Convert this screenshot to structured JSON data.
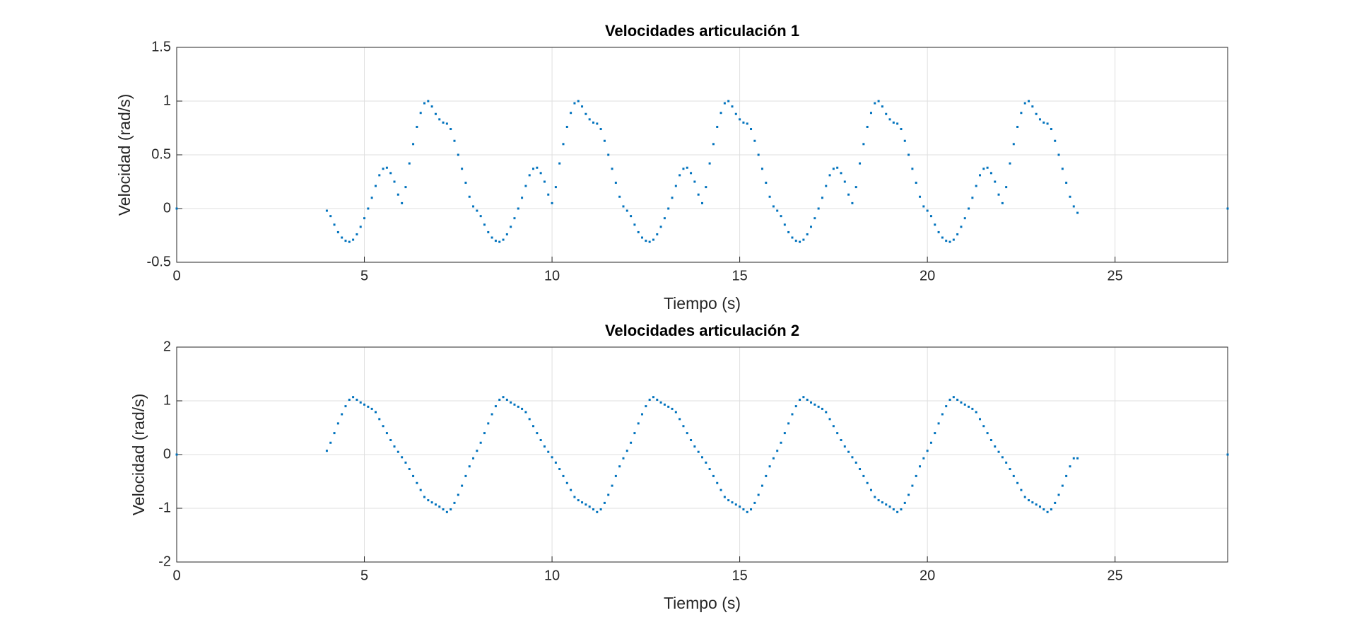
{
  "chart_data": [
    {
      "type": "scatter",
      "title": "Velocidades articulación 1",
      "xlabel": "Tiempo (s)",
      "ylabel": "Velocidad (rad/s)",
      "color": "#0072bd",
      "grid": true,
      "xlim": [
        0,
        28
      ],
      "ylim": [
        -0.5,
        1.5
      ],
      "xticks": [
        0,
        5,
        10,
        15,
        20,
        25
      ],
      "yticks": [
        -0.5,
        0,
        0.5,
        1,
        1.5
      ],
      "x": [
        0,
        4,
        4.1,
        4.2,
        4.3,
        4.4,
        4.5,
        4.6,
        4.7,
        4.8,
        4.9,
        5,
        5.1,
        5.2,
        5.3,
        5.4,
        5.5,
        5.6,
        5.7,
        5.8,
        5.9,
        6,
        6.1,
        6.2,
        6.3,
        6.4,
        6.5,
        6.6,
        6.7,
        6.8,
        6.9,
        7,
        7.1,
        7.2,
        7.3,
        7.4,
        7.5,
        7.6,
        7.7,
        7.8,
        7.9,
        8,
        8.1,
        8.2,
        8.3,
        8.4,
        8.5,
        8.6,
        8.7,
        8.8,
        8.9,
        9,
        9.1,
        9.2,
        9.3,
        9.4,
        9.5,
        9.6,
        9.7,
        9.8,
        9.9,
        10,
        10.1,
        10.2,
        10.3,
        10.4,
        10.5,
        10.6,
        10.7,
        10.8,
        10.9,
        11,
        11.1,
        11.2,
        11.3,
        11.4,
        11.5,
        11.6,
        11.7,
        11.8,
        11.9,
        12,
        12.1,
        12.2,
        12.3,
        12.4,
        12.5,
        12.6,
        12.7,
        12.8,
        12.9,
        13,
        13.1,
        13.2,
        13.3,
        13.4,
        13.5,
        13.6,
        13.7,
        13.8,
        13.9,
        14,
        14.1,
        14.2,
        14.3,
        14.4,
        14.5,
        14.6,
        14.7,
        14.8,
        14.9,
        15,
        15.1,
        15.2,
        15.3,
        15.4,
        15.5,
        15.6,
        15.7,
        15.8,
        15.9,
        16,
        16.1,
        16.2,
        16.3,
        16.4,
        16.5,
        16.6,
        16.7,
        16.8,
        16.9,
        17,
        17.1,
        17.2,
        17.3,
        17.4,
        17.5,
        17.6,
        17.7,
        17.8,
        17.9,
        18,
        18.1,
        18.2,
        18.3,
        18.4,
        18.5,
        18.6,
        18.7,
        18.8,
        18.9,
        19,
        19.1,
        19.2,
        19.3,
        19.4,
        19.5,
        19.6,
        19.7,
        19.8,
        19.9,
        20,
        20.1,
        20.2,
        20.3,
        20.4,
        20.5,
        20.6,
        20.7,
        20.8,
        20.9,
        21,
        21.1,
        21.2,
        21.3,
        21.4,
        21.5,
        21.6,
        21.7,
        21.8,
        21.9,
        22,
        22.1,
        22.2,
        22.3,
        22.4,
        22.5,
        22.6,
        22.7,
        22.8,
        22.9,
        23,
        23.1,
        23.2,
        23.3,
        23.4,
        23.5,
        23.6,
        23.7,
        23.8,
        23.9,
        24,
        28
      ],
      "values": [
        0,
        -0.02,
        -0.07,
        -0.15,
        -0.22,
        -0.27,
        -0.3,
        -0.31,
        -0.29,
        -0.24,
        -0.17,
        -0.09,
        0,
        0.1,
        0.21,
        0.31,
        0.37,
        0.38,
        0.33,
        0.25,
        0.13,
        0.05,
        0.2,
        0.42,
        0.6,
        0.76,
        0.89,
        0.98,
        1,
        0.95,
        0.88,
        0.83,
        0.8,
        0.79,
        0.74,
        0.63,
        0.5,
        0.37,
        0.24,
        0.11,
        0.02,
        -0.02,
        -0.07,
        -0.15,
        -0.22,
        -0.27,
        -0.3,
        -0.31,
        -0.29,
        -0.24,
        -0.17,
        -0.09,
        0,
        0.1,
        0.21,
        0.31,
        0.37,
        0.38,
        0.33,
        0.25,
        0.13,
        0.05,
        0.2,
        0.42,
        0.6,
        0.76,
        0.89,
        0.98,
        1,
        0.95,
        0.88,
        0.83,
        0.8,
        0.79,
        0.74,
        0.63,
        0.5,
        0.37,
        0.24,
        0.11,
        0.02,
        -0.02,
        -0.07,
        -0.15,
        -0.22,
        -0.27,
        -0.3,
        -0.31,
        -0.29,
        -0.24,
        -0.17,
        -0.09,
        0,
        0.1,
        0.21,
        0.31,
        0.37,
        0.38,
        0.33,
        0.25,
        0.13,
        0.05,
        0.2,
        0.42,
        0.6,
        0.76,
        0.89,
        0.98,
        1,
        0.95,
        0.88,
        0.83,
        0.8,
        0.79,
        0.74,
        0.63,
        0.5,
        0.37,
        0.24,
        0.11,
        0.02,
        -0.02,
        -0.07,
        -0.15,
        -0.22,
        -0.27,
        -0.3,
        -0.31,
        -0.29,
        -0.24,
        -0.17,
        -0.09,
        0,
        0.1,
        0.21,
        0.31,
        0.37,
        0.38,
        0.33,
        0.25,
        0.13,
        0.05,
        0.2,
        0.42,
        0.6,
        0.76,
        0.89,
        0.98,
        1,
        0.95,
        0.88,
        0.83,
        0.8,
        0.79,
        0.74,
        0.63,
        0.5,
        0.37,
        0.24,
        0.11,
        0.02,
        -0.02,
        -0.07,
        -0.15,
        -0.22,
        -0.27,
        -0.3,
        -0.31,
        -0.29,
        -0.24,
        -0.17,
        -0.09,
        0,
        0.1,
        0.21,
        0.31,
        0.37,
        0.38,
        0.33,
        0.25,
        0.13,
        0.05,
        0.2,
        0.42,
        0.6,
        0.76,
        0.89,
        0.98,
        1,
        0.95,
        0.88,
        0.83,
        0.8,
        0.79,
        0.74,
        0.63,
        0.5,
        0.37,
        0.24,
        0.11,
        0.02,
        -0.04,
        0
      ]
    },
    {
      "type": "scatter",
      "title": "Velocidades articulación 2",
      "xlabel": "Tiempo (s)",
      "ylabel": "Velocidad (rad/s)",
      "color": "#0072bd",
      "grid": true,
      "xlim": [
        0,
        28
      ],
      "ylim": [
        -2,
        2
      ],
      "xticks": [
        0,
        5,
        10,
        15,
        20,
        25
      ],
      "yticks": [
        -2,
        -1,
        0,
        1,
        2
      ],
      "x": [
        0,
        4,
        4.1,
        4.2,
        4.3,
        4.4,
        4.5,
        4.6,
        4.7,
        4.8,
        4.9,
        5,
        5.1,
        5.2,
        5.3,
        5.4,
        5.5,
        5.6,
        5.7,
        5.8,
        5.9,
        6,
        6.1,
        6.2,
        6.3,
        6.4,
        6.5,
        6.6,
        6.7,
        6.8,
        6.9,
        7,
        7.1,
        7.2,
        7.3,
        7.4,
        7.5,
        7.6,
        7.7,
        7.8,
        7.9,
        8,
        8.1,
        8.2,
        8.3,
        8.4,
        8.5,
        8.6,
        8.7,
        8.8,
        8.9,
        9,
        9.1,
        9.2,
        9.3,
        9.4,
        9.5,
        9.6,
        9.7,
        9.8,
        9.9,
        10,
        10.1,
        10.2,
        10.3,
        10.4,
        10.5,
        10.6,
        10.7,
        10.8,
        10.9,
        11,
        11.1,
        11.2,
        11.3,
        11.4,
        11.5,
        11.6,
        11.7,
        11.8,
        11.9,
        12,
        12.1,
        12.2,
        12.3,
        12.4,
        12.5,
        12.6,
        12.7,
        12.8,
        12.9,
        13,
        13.1,
        13.2,
        13.3,
        13.4,
        13.5,
        13.6,
        13.7,
        13.8,
        13.9,
        14,
        14.1,
        14.2,
        14.3,
        14.4,
        14.5,
        14.6,
        14.7,
        14.8,
        14.9,
        15,
        15.1,
        15.2,
        15.3,
        15.4,
        15.5,
        15.6,
        15.7,
        15.8,
        15.9,
        16,
        16.1,
        16.2,
        16.3,
        16.4,
        16.5,
        16.6,
        16.7,
        16.8,
        16.9,
        17,
        17.1,
        17.2,
        17.3,
        17.4,
        17.5,
        17.6,
        17.7,
        17.8,
        17.9,
        18,
        18.1,
        18.2,
        18.3,
        18.4,
        18.5,
        18.6,
        18.7,
        18.8,
        18.9,
        19,
        19.1,
        19.2,
        19.3,
        19.4,
        19.5,
        19.6,
        19.7,
        19.8,
        19.9,
        20,
        20.1,
        20.2,
        20.3,
        20.4,
        20.5,
        20.6,
        20.7,
        20.8,
        20.9,
        21,
        21.1,
        21.2,
        21.3,
        21.4,
        21.5,
        21.6,
        21.7,
        21.8,
        21.9,
        22,
        22.1,
        22.2,
        22.3,
        22.4,
        22.5,
        22.6,
        22.7,
        22.8,
        22.9,
        23,
        23.1,
        23.2,
        23.3,
        23.4,
        23.5,
        23.6,
        23.7,
        23.8,
        23.9,
        24,
        28
      ],
      "values": [
        0,
        0.07,
        0.22,
        0.4,
        0.58,
        0.75,
        0.9,
        1.02,
        1.07,
        1.02,
        0.97,
        0.93,
        0.89,
        0.85,
        0.79,
        0.66,
        0.53,
        0.4,
        0.27,
        0.15,
        0.05,
        -0.05,
        -0.15,
        -0.27,
        -0.4,
        -0.53,
        -0.66,
        -0.79,
        -0.85,
        -0.89,
        -0.93,
        -0.97,
        -1.02,
        -1.07,
        -1.02,
        -0.9,
        -0.75,
        -0.58,
        -0.4,
        -0.22,
        -0.07,
        0.07,
        0.22,
        0.4,
        0.58,
        0.75,
        0.9,
        1.02,
        1.07,
        1.02,
        0.97,
        0.93,
        0.89,
        0.85,
        0.79,
        0.66,
        0.53,
        0.4,
        0.27,
        0.15,
        0.05,
        -0.05,
        -0.15,
        -0.27,
        -0.4,
        -0.53,
        -0.66,
        -0.79,
        -0.85,
        -0.89,
        -0.93,
        -0.97,
        -1.02,
        -1.07,
        -1.02,
        -0.9,
        -0.75,
        -0.58,
        -0.4,
        -0.22,
        -0.07,
        0.07,
        0.22,
        0.4,
        0.58,
        0.75,
        0.9,
        1.02,
        1.07,
        1.02,
        0.97,
        0.93,
        0.89,
        0.85,
        0.79,
        0.66,
        0.53,
        0.4,
        0.27,
        0.15,
        0.05,
        -0.05,
        -0.15,
        -0.27,
        -0.4,
        -0.53,
        -0.66,
        -0.79,
        -0.85,
        -0.89,
        -0.93,
        -0.97,
        -1.02,
        -1.07,
        -1.02,
        -0.9,
        -0.75,
        -0.58,
        -0.4,
        -0.22,
        -0.07,
        0.07,
        0.22,
        0.4,
        0.58,
        0.75,
        0.9,
        1.02,
        1.07,
        1.02,
        0.97,
        0.93,
        0.89,
        0.85,
        0.79,
        0.66,
        0.53,
        0.4,
        0.27,
        0.15,
        0.05,
        -0.05,
        -0.15,
        -0.27,
        -0.4,
        -0.53,
        -0.66,
        -0.79,
        -0.85,
        -0.89,
        -0.93,
        -0.97,
        -1.02,
        -1.07,
        -1.02,
        -0.9,
        -0.75,
        -0.58,
        -0.4,
        -0.22,
        -0.07,
        0.07,
        0.22,
        0.4,
        0.58,
        0.75,
        0.9,
        1.02,
        1.07,
        1.02,
        0.97,
        0.93,
        0.89,
        0.85,
        0.79,
        0.66,
        0.53,
        0.4,
        0.27,
        0.15,
        0.05,
        -0.05,
        -0.15,
        -0.27,
        -0.4,
        -0.53,
        -0.66,
        -0.79,
        -0.85,
        -0.89,
        -0.93,
        -0.97,
        -1.02,
        -1.07,
        -1.02,
        -0.9,
        -0.75,
        -0.58,
        -0.4,
        -0.22,
        -0.07,
        -0.07,
        0
      ]
    }
  ]
}
